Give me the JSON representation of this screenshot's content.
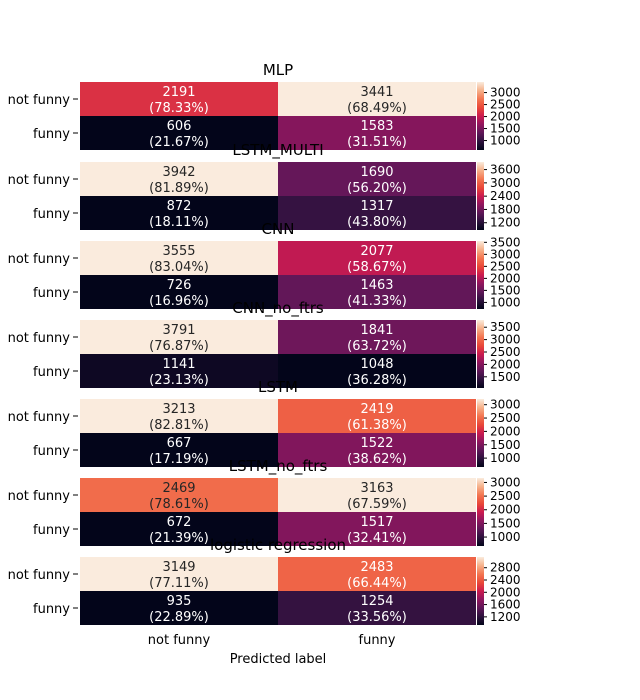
{
  "chart_data": {
    "type": "heatmap",
    "xlabel": "Predicted label",
    "x_categories": [
      "not funny",
      "funny"
    ],
    "y_categories": [
      "not funny",
      "funny"
    ],
    "colormap": "rocket",
    "panels": [
      {
        "title": "MLP",
        "values": [
          [
            2191,
            3441
          ],
          [
            606,
            1583
          ]
        ],
        "percent_labels": [
          [
            "(78.33%)",
            "(68.49%)"
          ],
          [
            "(21.67%)",
            "(31.51%)"
          ]
        ],
        "colorbar_ticks": [
          1000,
          1500,
          2000,
          2500,
          3000
        ]
      },
      {
        "title": "LSTM_MULTI",
        "values": [
          [
            3942,
            1690
          ],
          [
            872,
            1317
          ]
        ],
        "percent_labels": [
          [
            "(81.89%)",
            "(56.20%)"
          ],
          [
            "(18.11%)",
            "(43.80%)"
          ]
        ],
        "colorbar_ticks": [
          1200,
          1800,
          2400,
          3000,
          3600
        ]
      },
      {
        "title": "CNN",
        "values": [
          [
            3555,
            2077
          ],
          [
            726,
            1463
          ]
        ],
        "percent_labels": [
          [
            "(83.04%)",
            "(58.67%)"
          ],
          [
            "(16.96%)",
            "(41.33%)"
          ]
        ],
        "colorbar_ticks": [
          1000,
          1500,
          2000,
          2500,
          3000,
          3500
        ]
      },
      {
        "title": "CNN_no_ftrs",
        "values": [
          [
            3791,
            1841
          ],
          [
            1141,
            1048
          ]
        ],
        "percent_labels": [
          [
            "(76.87%)",
            "(63.72%)"
          ],
          [
            "(23.13%)",
            "(36.28%)"
          ]
        ],
        "colorbar_ticks": [
          1500,
          2000,
          2500,
          3000,
          3500
        ]
      },
      {
        "title": "LSTM",
        "values": [
          [
            3213,
            2419
          ],
          [
            667,
            1522
          ]
        ],
        "percent_labels": [
          [
            "(82.81%)",
            "(61.38%)"
          ],
          [
            "(17.19%)",
            "(38.62%)"
          ]
        ],
        "colorbar_ticks": [
          1000,
          1500,
          2000,
          2500,
          3000
        ]
      },
      {
        "title": "LSTM_no_ftrs",
        "values": [
          [
            2469,
            3163
          ],
          [
            672,
            1517
          ]
        ],
        "percent_labels": [
          [
            "(78.61%)",
            "(67.59%)"
          ],
          [
            "(21.39%)",
            "(32.41%)"
          ]
        ],
        "colorbar_ticks": [
          1000,
          1500,
          2000,
          2500,
          3000
        ]
      },
      {
        "title": "logistic regression",
        "values": [
          [
            3149,
            2483
          ],
          [
            935,
            1254
          ]
        ],
        "percent_labels": [
          [
            "(77.11%)",
            "(66.44%)"
          ],
          [
            "(22.89%)",
            "(33.56%)"
          ]
        ],
        "colorbar_ticks": [
          1200,
          1600,
          2000,
          2400,
          2800
        ]
      }
    ]
  }
}
